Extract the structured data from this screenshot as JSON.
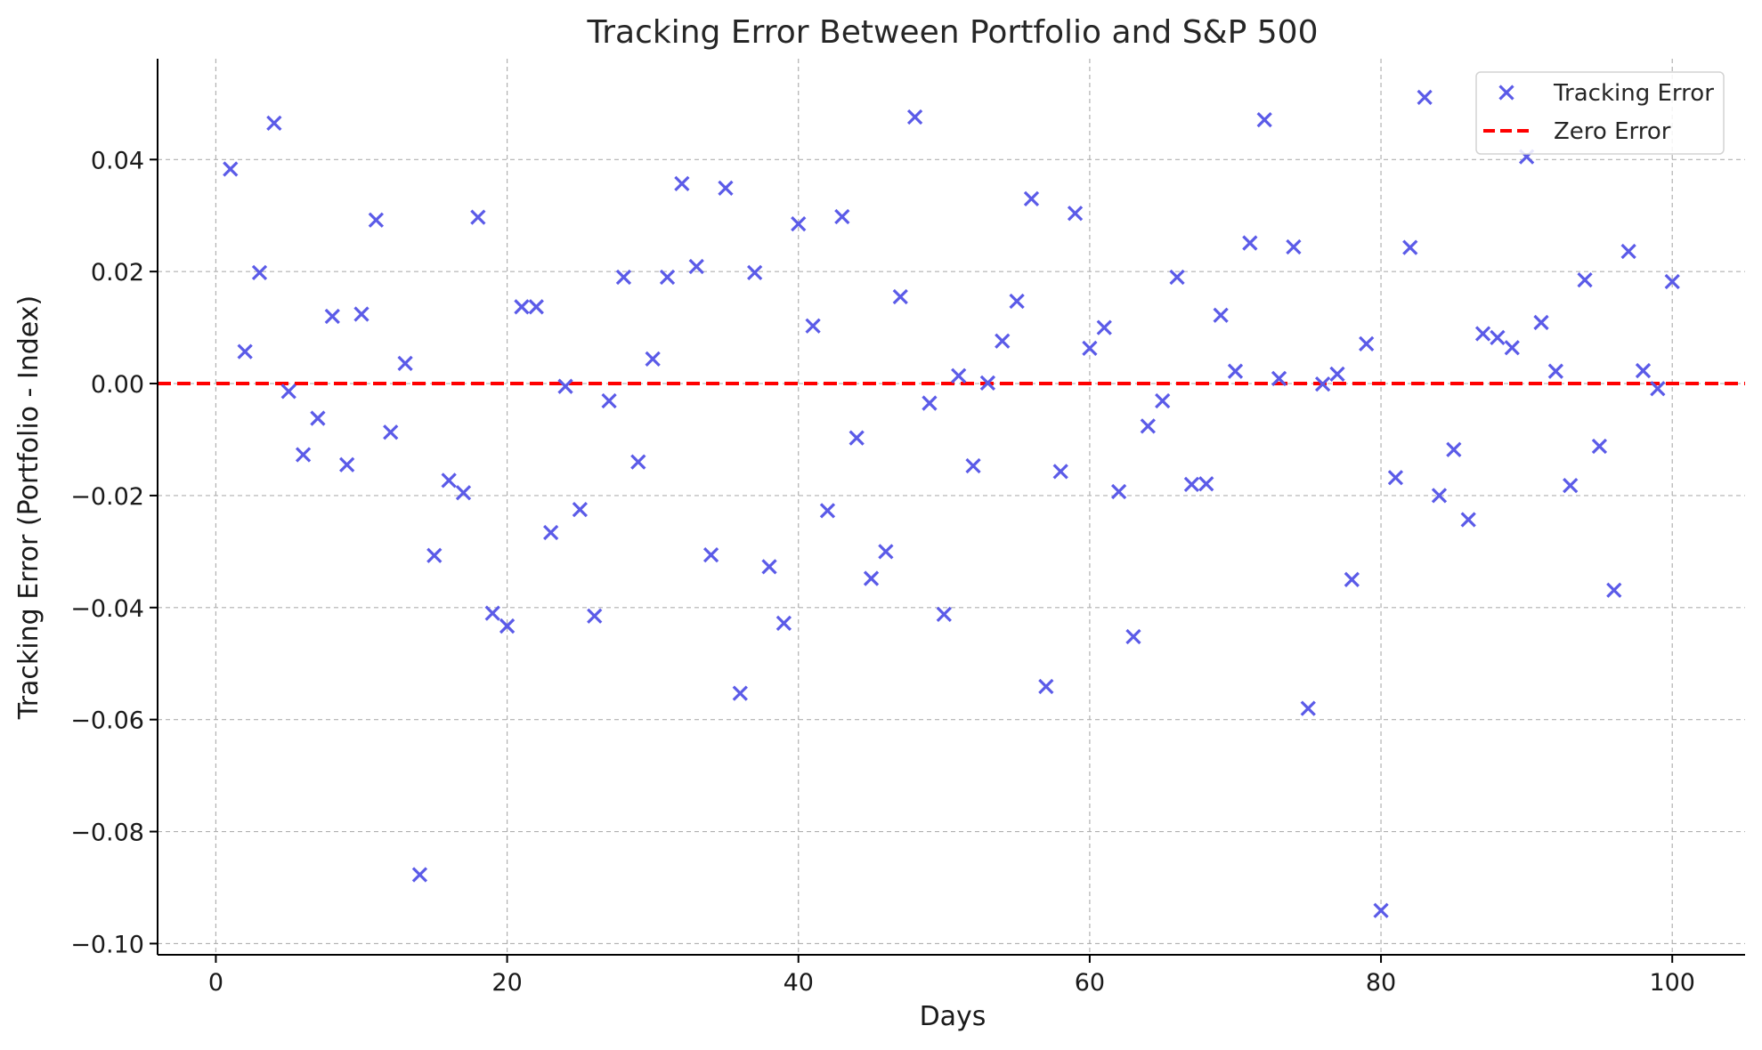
{
  "chart_data": {
    "type": "scatter",
    "title": "Tracking Error Between Portfolio and S&P 500",
    "xlabel": "Days",
    "ylabel": "Tracking Error (Portfolio - Index)",
    "xlim": [
      -4,
      105
    ],
    "ylim": [
      -0.102,
      0.058
    ],
    "xticks": [
      0,
      20,
      40,
      60,
      80,
      100
    ],
    "xtick_labels": [
      "0",
      "20",
      "40",
      "60",
      "80",
      "100"
    ],
    "yticks": [
      -0.1,
      -0.08,
      -0.06,
      -0.04,
      -0.02,
      0.0,
      0.02,
      0.04
    ],
    "ytick_labels": [
      "−0.10",
      "−0.08",
      "−0.06",
      "−0.04",
      "−0.02",
      "0.00",
      "0.02",
      "0.04"
    ],
    "grid": true,
    "legend_position": "top-right",
    "series": [
      {
        "name": "Tracking Error",
        "marker": "x",
        "color": "#5B5BE8",
        "x": [
          1,
          2,
          3,
          4,
          5,
          6,
          7,
          8,
          9,
          10,
          11,
          12,
          13,
          14,
          15,
          16,
          17,
          18,
          19,
          20,
          21,
          22,
          23,
          24,
          25,
          26,
          27,
          28,
          29,
          30,
          31,
          32,
          33,
          34,
          35,
          36,
          37,
          38,
          39,
          40,
          41,
          42,
          43,
          44,
          45,
          46,
          47,
          48,
          49,
          50,
          51,
          52,
          53,
          54,
          55,
          56,
          57,
          58,
          59,
          60,
          61,
          62,
          63,
          64,
          65,
          66,
          67,
          68,
          69,
          70,
          71,
          72,
          73,
          74,
          75,
          76,
          77,
          78,
          79,
          80,
          81,
          82,
          83,
          84,
          85,
          86,
          87,
          88,
          89,
          90,
          91,
          92,
          93,
          94,
          95,
          96,
          97,
          98,
          99,
          100
        ],
        "y": [
          0.0383,
          0.0057,
          0.0198,
          0.0465,
          -0.0014,
          -0.0127,
          -0.0062,
          0.012,
          -0.0145,
          0.0124,
          0.0292,
          -0.0087,
          0.0036,
          -0.0877,
          -0.0307,
          -0.0173,
          -0.0195,
          0.0297,
          -0.041,
          -0.0433,
          0.0137,
          0.0137,
          -0.0266,
          -0.0005,
          -0.0225,
          -0.0415,
          -0.0031,
          0.019,
          -0.014,
          0.0044,
          0.019,
          0.0357,
          0.0209,
          -0.0306,
          0.0349,
          -0.0553,
          0.0198,
          -0.0327,
          -0.0428,
          0.0285,
          0.0103,
          -0.0227,
          0.0298,
          -0.0097,
          -0.0348,
          -0.03,
          0.0155,
          0.0476,
          -0.0035,
          -0.0412,
          0.0014,
          -0.0147,
          0.0001,
          0.0076,
          0.0147,
          0.033,
          -0.0541,
          -0.0157,
          0.0304,
          0.0063,
          0.01,
          -0.0193,
          -0.0452,
          -0.0076,
          -0.0031,
          0.019,
          -0.018,
          -0.0179,
          0.0122,
          0.0022,
          0.0251,
          0.0471,
          0.0009,
          0.0244,
          -0.058,
          -0.0001,
          0.0017,
          -0.035,
          0.0071,
          -0.0941,
          -0.0168,
          0.0243,
          0.0511,
          -0.02,
          -0.0118,
          -0.0243,
          0.0089,
          0.0082,
          0.0064,
          0.0405,
          0.0109,
          0.0022,
          -0.0182,
          0.0185,
          -0.0112,
          -0.0369,
          0.0236,
          0.0023,
          -0.0009,
          0.0182
        ]
      },
      {
        "name": "Zero Error",
        "type": "hline",
        "y": 0,
        "style": "dashed",
        "color": "#FF0000"
      }
    ]
  }
}
